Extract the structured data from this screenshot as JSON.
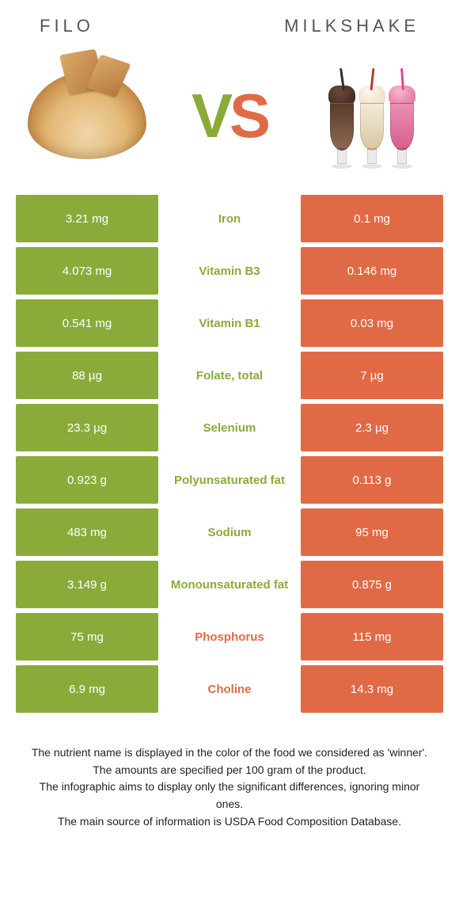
{
  "colors": {
    "green": "#8aab3a",
    "orange": "#e06a46",
    "text_green": "#8aab3a",
    "text_orange": "#e06a46"
  },
  "header": {
    "left_title": "Filo",
    "right_title": "Milkshake",
    "vs_v": "V",
    "vs_s": "S"
  },
  "rows": [
    {
      "left": "3.21 mg",
      "label": "Iron",
      "right": "0.1 mg",
      "winner": "left"
    },
    {
      "left": "4.073 mg",
      "label": "Vitamin B3",
      "right": "0.146 mg",
      "winner": "left"
    },
    {
      "left": "0.541 mg",
      "label": "Vitamin B1",
      "right": "0.03 mg",
      "winner": "left"
    },
    {
      "left": "88 µg",
      "label": "Folate, total",
      "right": "7 µg",
      "winner": "left"
    },
    {
      "left": "23.3 µg",
      "label": "Selenium",
      "right": "2.3 µg",
      "winner": "left"
    },
    {
      "left": "0.923 g",
      "label": "Polyunsaturated fat",
      "right": "0.113 g",
      "winner": "left"
    },
    {
      "left": "483 mg",
      "label": "Sodium",
      "right": "95 mg",
      "winner": "left"
    },
    {
      "left": "3.149 g",
      "label": "Monounsaturated fat",
      "right": "0.875 g",
      "winner": "left"
    },
    {
      "left": "75 mg",
      "label": "Phosphorus",
      "right": "115 mg",
      "winner": "right"
    },
    {
      "left": "6.9 mg",
      "label": "Choline",
      "right": "14.3 mg",
      "winner": "right"
    }
  ],
  "footer": {
    "l1": "The nutrient name is displayed in the color of the food we considered as 'winner'.",
    "l2": "The amounts are specified per 100 gram of the product.",
    "l3": "The infographic aims to display only the significant differences, ignoring minor ones.",
    "l4": "The main source of information is USDA Food Composition Database."
  }
}
